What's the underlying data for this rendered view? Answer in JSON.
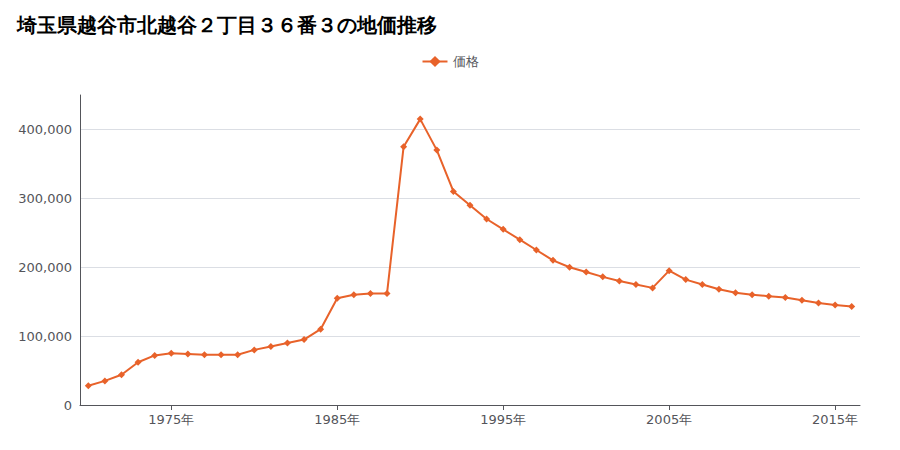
{
  "chart_data": {
    "type": "line",
    "title": "埼玉県越谷市北越谷２丁目３６番３の地価推移",
    "x": [
      1970,
      1971,
      1972,
      1973,
      1974,
      1975,
      1976,
      1977,
      1978,
      1979,
      1980,
      1981,
      1982,
      1983,
      1984,
      1985,
      1986,
      1987,
      1988,
      1989,
      1990,
      1991,
      1992,
      1993,
      1994,
      1995,
      1996,
      1997,
      1998,
      1999,
      2000,
      2001,
      2002,
      2003,
      2004,
      2005,
      2006,
      2007,
      2008,
      2009,
      2010,
      2011,
      2012,
      2013,
      2014,
      2015,
      2016
    ],
    "series": [
      {
        "name": "価格",
        "color": "#e8622a",
        "marker": "diamond",
        "values": [
          28000,
          35000,
          44000,
          62000,
          72000,
          75000,
          74000,
          73000,
          73000,
          73000,
          80000,
          85000,
          90000,
          95000,
          110000,
          155000,
          160000,
          162000,
          162000,
          375000,
          415000,
          370000,
          310000,
          290000,
          270000,
          255000,
          240000,
          225000,
          210000,
          200000,
          193000,
          186000,
          180000,
          175000,
          170000,
          195000,
          182000,
          175000,
          168000,
          163000,
          160000,
          158000,
          156000,
          152000,
          148000,
          145000,
          143000
        ]
      }
    ],
    "xlim": [
      1969.5,
      2016.5
    ],
    "xticks": [
      {
        "value": 1975,
        "label": "1975年"
      },
      {
        "value": 1985,
        "label": "1985年"
      },
      {
        "value": 1995,
        "label": "1995年"
      },
      {
        "value": 2005,
        "label": "2005年"
      },
      {
        "value": 2015,
        "label": "2015年"
      }
    ],
    "ylim": [
      0,
      450000
    ],
    "yticks": [
      0,
      {
        "value": 100000,
        "label": "100,000"
      },
      {
        "value": 200000,
        "label": "200,000"
      },
      {
        "value": 300000,
        "label": "300,000"
      },
      {
        "value": 400000,
        "label": "400,000"
      }
    ],
    "grid": true,
    "legend": "top"
  }
}
